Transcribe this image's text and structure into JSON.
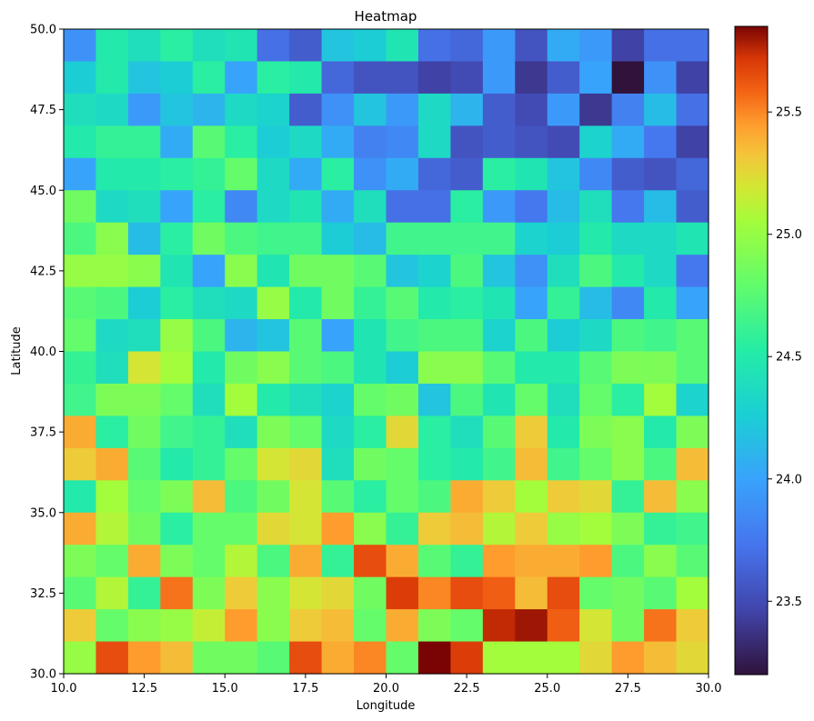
{
  "chart_data": {
    "type": "heatmap",
    "title": "Heatmap",
    "xlabel": "Longitude",
    "ylabel": "Latitude",
    "xlim": [
      10.0,
      30.0
    ],
    "ylim": [
      30.0,
      50.0
    ],
    "x_ticks": [
      "10.0",
      "12.5",
      "15.0",
      "17.5",
      "20.0",
      "22.5",
      "25.0",
      "27.5",
      "30.0"
    ],
    "y_ticks": [
      "30.0",
      "32.5",
      "35.0",
      "37.5",
      "40.0",
      "42.5",
      "45.0",
      "47.5",
      "50.0"
    ],
    "colormap": "turbo",
    "colorbar": {
      "min": 23.2,
      "max": 25.85,
      "ticks": [
        "23.5",
        "24.0",
        "24.5",
        "25.0",
        "25.5"
      ]
    },
    "grid_shape": [
      20,
      20
    ],
    "row_order": "top (lat 50) to bottom (lat 30)",
    "grid": [
      [
        23.9,
        24.5,
        24.4,
        24.55,
        24.4,
        24.45,
        23.7,
        23.6,
        24.2,
        24.25,
        24.45,
        23.7,
        23.65,
        23.95,
        23.55,
        24.05,
        23.95,
        23.45,
        23.7,
        23.7
      ],
      [
        24.25,
        24.5,
        24.2,
        24.25,
        24.55,
        24.0,
        24.55,
        24.5,
        23.65,
        23.55,
        23.55,
        23.45,
        23.5,
        23.95,
        23.4,
        23.6,
        24.0,
        23.2,
        23.9,
        23.45
      ],
      [
        24.4,
        24.35,
        23.95,
        24.2,
        24.1,
        24.35,
        24.3,
        23.6,
        23.9,
        24.2,
        23.95,
        24.35,
        24.1,
        23.6,
        23.5,
        23.95,
        23.4,
        23.8,
        24.15,
        23.7
      ],
      [
        24.5,
        24.6,
        24.6,
        24.05,
        24.75,
        24.55,
        24.25,
        24.35,
        24.05,
        23.8,
        23.85,
        24.35,
        23.55,
        23.6,
        23.55,
        23.5,
        24.3,
        24.05,
        23.75,
        23.45
      ],
      [
        24.0,
        24.5,
        24.5,
        24.55,
        24.6,
        24.8,
        24.35,
        24.05,
        24.55,
        23.9,
        24.05,
        23.65,
        23.6,
        24.55,
        24.45,
        24.2,
        23.85,
        23.6,
        23.55,
        23.65
      ],
      [
        24.85,
        24.35,
        24.4,
        24.0,
        24.55,
        23.85,
        24.35,
        24.45,
        24.05,
        24.4,
        23.7,
        23.7,
        24.55,
        23.95,
        23.75,
        24.15,
        24.4,
        23.75,
        24.15,
        23.6
      ],
      [
        24.7,
        24.95,
        24.15,
        24.55,
        24.85,
        24.7,
        24.65,
        24.65,
        24.25,
        24.15,
        24.65,
        24.65,
        24.65,
        24.65,
        24.3,
        24.25,
        24.5,
        24.35,
        24.35,
        24.45
      ],
      [
        25.0,
        25.0,
        24.95,
        24.45,
        24.0,
        24.95,
        24.45,
        24.85,
        24.85,
        24.75,
        24.2,
        24.3,
        24.7,
        24.2,
        23.9,
        24.4,
        24.7,
        24.5,
        24.35,
        23.75
      ],
      [
        24.75,
        24.7,
        24.25,
        24.55,
        24.4,
        24.35,
        25.0,
        24.5,
        24.85,
        24.6,
        24.75,
        24.5,
        24.55,
        24.45,
        24.0,
        24.6,
        24.15,
        23.85,
        24.5,
        24.0
      ],
      [
        24.8,
        24.35,
        24.4,
        25.0,
        24.7,
        24.1,
        24.2,
        24.75,
        24.0,
        24.45,
        24.65,
        24.7,
        24.7,
        24.3,
        24.7,
        24.25,
        24.35,
        24.7,
        24.65,
        24.75
      ],
      [
        24.6,
        24.4,
        25.2,
        25.05,
        24.5,
        24.85,
        24.95,
        24.75,
        24.7,
        24.45,
        24.25,
        24.95,
        24.95,
        24.75,
        24.5,
        24.5,
        24.75,
        24.9,
        24.9,
        24.75
      ],
      [
        24.65,
        24.9,
        24.9,
        24.8,
        24.4,
        25.05,
        24.5,
        24.4,
        24.3,
        24.8,
        24.85,
        24.2,
        24.7,
        24.45,
        24.8,
        24.4,
        24.8,
        24.55,
        25.05,
        24.3
      ],
      [
        25.4,
        24.55,
        24.85,
        24.65,
        24.6,
        24.4,
        24.9,
        24.8,
        24.35,
        24.55,
        25.25,
        24.55,
        24.4,
        24.75,
        25.3,
        24.5,
        24.9,
        24.95,
        24.5,
        24.9
      ],
      [
        25.3,
        25.4,
        24.75,
        24.5,
        24.6,
        24.8,
        25.2,
        25.25,
        24.4,
        24.85,
        24.8,
        24.55,
        24.5,
        24.65,
        25.35,
        24.65,
        24.8,
        24.95,
        24.7,
        25.35
      ],
      [
        24.5,
        25.05,
        24.8,
        24.9,
        25.35,
        24.7,
        24.85,
        25.2,
        24.75,
        24.55,
        24.8,
        24.7,
        25.4,
        25.3,
        25.05,
        25.3,
        25.25,
        24.6,
        25.35,
        24.95
      ],
      [
        25.4,
        25.1,
        24.85,
        24.55,
        24.8,
        24.8,
        25.25,
        25.2,
        25.45,
        24.95,
        24.6,
        25.3,
        25.35,
        25.1,
        25.3,
        25.0,
        25.05,
        24.9,
        24.6,
        24.65
      ],
      [
        24.9,
        24.8,
        25.4,
        24.9,
        24.8,
        25.1,
        24.7,
        25.4,
        24.6,
        25.65,
        25.4,
        24.75,
        24.6,
        25.45,
        25.4,
        25.4,
        25.45,
        24.7,
        24.95,
        24.75
      ],
      [
        24.75,
        25.1,
        24.6,
        25.55,
        24.9,
        25.3,
        24.95,
        25.2,
        25.25,
        24.85,
        25.7,
        25.5,
        25.65,
        25.6,
        25.35,
        25.65,
        24.8,
        24.85,
        24.75,
        25.05
      ],
      [
        25.3,
        24.8,
        24.95,
        25.0,
        25.15,
        25.45,
        24.95,
        25.3,
        25.35,
        24.8,
        25.4,
        24.9,
        24.8,
        25.75,
        25.8,
        25.6,
        25.2,
        24.85,
        25.55,
        25.3
      ],
      [
        25.0,
        25.65,
        25.45,
        25.35,
        24.85,
        24.85,
        24.75,
        25.65,
        25.4,
        25.5,
        24.8,
        25.85,
        25.7,
        25.05,
        25.05,
        25.05,
        25.25,
        25.45,
        25.35,
        25.25
      ]
    ]
  }
}
